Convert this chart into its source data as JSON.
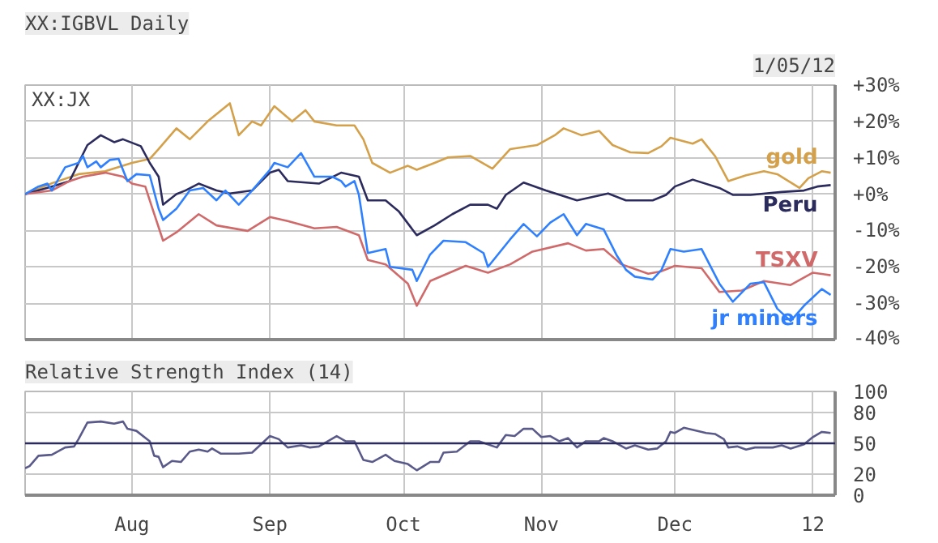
{
  "chart_data": [
    {
      "type": "line",
      "title": "XX:IGBVL Daily",
      "annotations": [
        "XX:JX",
        "1/05/12"
      ],
      "xlim": [
        "2011-07-08",
        "2012-01-06"
      ],
      "xticks": [
        {
          "value": "2011-08-01",
          "label": null
        },
        {
          "value": "2011-09-01",
          "label": null
        },
        {
          "value": "2011-10-01",
          "label": null
        },
        {
          "value": "2011-11-01",
          "label": null
        },
        {
          "value": "2011-12-01",
          "label": null
        },
        {
          "value": "2012-01-01",
          "label": null
        }
      ],
      "ylim": [
        -40,
        30
      ],
      "yticks": [
        {
          "value": 30,
          "label": "+30%"
        },
        {
          "value": 20,
          "label": "+20%"
        },
        {
          "value": 10,
          "label": "+10%"
        },
        {
          "value": 0,
          "label": "+0%"
        },
        {
          "value": -10,
          "label": "-10%"
        },
        {
          "value": -20,
          "label": "-20%"
        },
        {
          "value": -30,
          "label": "-30%"
        },
        {
          "value": -40,
          "label": "-40%"
        }
      ],
      "tick_labels": "y",
      "grid": true,
      "series": [
        {
          "name": "gold",
          "color": "#d4a04a",
          "x": [
            "2011-07-08",
            "2011-07-14",
            "2011-07-20",
            "2011-07-26",
            "2011-08-01",
            "2011-08-05",
            "2011-08-07",
            "2011-08-11",
            "2011-08-14",
            "2011-08-18",
            "2011-08-23",
            "2011-08-25",
            "2011-08-28",
            "2011-08-30",
            "2011-09-02",
            "2011-09-06",
            "2011-09-09",
            "2011-09-11",
            "2011-09-16",
            "2011-09-20",
            "2011-09-22",
            "2011-09-24",
            "2011-09-28",
            "2011-10-02",
            "2011-10-04",
            "2011-10-08",
            "2011-10-11",
            "2011-10-16",
            "2011-10-21",
            "2011-10-25",
            "2011-10-31",
            "2011-11-04",
            "2011-11-06",
            "2011-11-10",
            "2011-11-14",
            "2011-11-17",
            "2011-11-21",
            "2011-11-25",
            "2011-11-28",
            "2011-11-30",
            "2011-12-05",
            "2011-12-07",
            "2011-12-10",
            "2011-12-13",
            "2011-12-17",
            "2011-12-21",
            "2011-12-24",
            "2011-12-29",
            "2011-12-31",
            "2012-01-03",
            "2012-01-05"
          ],
          "values": [
            0,
            3,
            5.5,
            6.3,
            8.6,
            9.7,
            12.4,
            18.1,
            15.1,
            20,
            25,
            16.2,
            20,
            18.9,
            24.2,
            20,
            23.1,
            20,
            18.9,
            18.9,
            15.1,
            8.6,
            5.9,
            7.8,
            6.7,
            8.6,
            10.1,
            10.5,
            7,
            12.4,
            13.5,
            16.2,
            18.1,
            16.2,
            17.4,
            13.5,
            11.5,
            11.3,
            13.2,
            15.5,
            13.9,
            15.1,
            10.5,
            3.6,
            5.2,
            6.3,
            5.5,
            1.7,
            4.4,
            6.3,
            5.9
          ]
        },
        {
          "name": "Peru",
          "color": "#2b2b5e",
          "x": [
            "2011-07-08",
            "2011-07-14",
            "2011-07-18",
            "2011-07-22",
            "2011-07-25",
            "2011-07-28",
            "2011-07-30",
            "2011-08-03",
            "2011-08-05",
            "2011-08-07",
            "2011-08-08",
            "2011-08-11",
            "2011-08-13",
            "2011-08-16",
            "2011-08-20",
            "2011-08-23",
            "2011-08-28",
            "2011-09-01",
            "2011-09-03",
            "2011-09-05",
            "2011-09-12",
            "2011-09-17",
            "2011-09-21",
            "2011-09-23",
            "2011-09-27",
            "2011-09-30",
            "2011-10-04",
            "2011-10-08",
            "2011-10-12",
            "2011-10-16",
            "2011-10-20",
            "2011-10-22",
            "2011-10-24",
            "2011-10-28",
            "2011-11-02",
            "2011-11-09",
            "2011-11-16",
            "2011-11-20",
            "2011-11-26",
            "2011-11-29",
            "2011-12-01",
            "2011-12-05",
            "2011-12-11",
            "2011-12-14",
            "2011-12-18",
            "2011-12-25",
            "2011-12-30",
            "2012-01-02",
            "2012-01-05"
          ],
          "values": [
            0,
            2.1,
            3.6,
            13.5,
            16.2,
            14.3,
            15.1,
            13.2,
            8.6,
            4.8,
            -2.9,
            0,
            1,
            2.9,
            1,
            0.2,
            1,
            5.9,
            6.7,
            3.6,
            2.9,
            5.9,
            4.8,
            -1.7,
            -1.7,
            -4.8,
            -11.3,
            -8.6,
            -5.5,
            -2.9,
            -2.9,
            -4,
            -0.2,
            3.2,
            1,
            -1.7,
            0.2,
            -1.7,
            -1.7,
            -0.2,
            2.1,
            4,
            1.7,
            -0.2,
            -0.2,
            0.6,
            1,
            2.1,
            2.5
          ]
        },
        {
          "name": "TSXV",
          "color": "#d06a6a",
          "x": [
            "2011-07-08",
            "2011-07-14",
            "2011-07-18",
            "2011-07-21",
            "2011-07-26",
            "2011-07-30",
            "2011-08-01",
            "2011-08-04",
            "2011-08-05",
            "2011-08-08",
            "2011-08-11",
            "2011-08-16",
            "2011-08-20",
            "2011-08-27",
            "2011-09-01",
            "2011-09-05",
            "2011-09-11",
            "2011-09-16",
            "2011-09-21",
            "2011-09-23",
            "2011-09-27",
            "2011-10-02",
            "2011-10-04",
            "2011-10-07",
            "2011-10-15",
            "2011-10-20",
            "2011-10-25",
            "2011-10-30",
            "2011-11-07",
            "2011-11-11",
            "2011-11-15",
            "2011-11-19",
            "2011-11-25",
            "2011-11-28",
            "2011-12-01",
            "2011-12-07",
            "2011-12-11",
            "2011-12-16",
            "2011-12-21",
            "2011-12-27",
            "2012-01-01",
            "2012-01-05"
          ],
          "values": [
            0,
            1,
            3.6,
            4.8,
            5.9,
            4.8,
            2.9,
            2.1,
            -1.7,
            -12.8,
            -10.5,
            -5.5,
            -8.6,
            -10.1,
            -6.3,
            -7.4,
            -9.4,
            -9,
            -11.3,
            -18.1,
            -19.3,
            -24.6,
            -30.7,
            -23.9,
            -19.7,
            -21.6,
            -19.3,
            -15.8,
            -13.5,
            -15.5,
            -15.1,
            -19.3,
            -21.9,
            -21.2,
            -19.7,
            -20.4,
            -26.9,
            -26.5,
            -23.9,
            -25,
            -21.6,
            -22.3
          ]
        },
        {
          "name": "jr miners",
          "color": "#2f80ff",
          "x": [
            "2011-07-08",
            "2011-07-11",
            "2011-07-13",
            "2011-07-14",
            "2011-07-17",
            "2011-07-20",
            "2011-07-21",
            "2011-07-22",
            "2011-07-24",
            "2011-07-25",
            "2011-07-27",
            "2011-07-29",
            "2011-07-31",
            "2011-08-02",
            "2011-08-05",
            "2011-08-07",
            "2011-08-08",
            "2011-08-11",
            "2011-08-14",
            "2011-08-17",
            "2011-08-20",
            "2011-08-22",
            "2011-08-25",
            "2011-08-28",
            "2011-09-01",
            "2011-09-02",
            "2011-09-05",
            "2011-09-08",
            "2011-09-11",
            "2011-09-15",
            "2011-09-17",
            "2011-09-18",
            "2011-09-20",
            "2011-09-21",
            "2011-09-23",
            "2011-09-27",
            "2011-09-28",
            "2011-10-03",
            "2011-10-04",
            "2011-10-07",
            "2011-10-10",
            "2011-10-15",
            "2011-10-19",
            "2011-10-20",
            "2011-10-25",
            "2011-10-28",
            "2011-10-31",
            "2011-11-03",
            "2011-11-06",
            "2011-11-09",
            "2011-11-11",
            "2011-11-15",
            "2011-11-18",
            "2011-11-20",
            "2011-11-22",
            "2011-11-26",
            "2011-11-28",
            "2011-11-30",
            "2011-12-03",
            "2011-12-07",
            "2011-12-11",
            "2011-12-14",
            "2011-12-18",
            "2011-12-21",
            "2011-12-24",
            "2011-12-27",
            "2011-12-30",
            "2012-01-03",
            "2012-01-05"
          ],
          "values": [
            0,
            2.1,
            2.9,
            1,
            7.4,
            8.6,
            10.5,
            7.4,
            9,
            7.4,
            9.4,
            9.7,
            3.6,
            5.5,
            5.2,
            -4,
            -7.1,
            -4,
            1,
            1.7,
            -1.7,
            1,
            -2.9,
            1,
            6.7,
            8.6,
            7.4,
            11.3,
            4.8,
            4.8,
            3.6,
            2.1,
            3.6,
            -0.2,
            -16.2,
            -15.1,
            -20,
            -20.8,
            -23.9,
            -16.6,
            -12.8,
            -13.2,
            -16.2,
            -20,
            -12.4,
            -8.2,
            -11.6,
            -7.8,
            -5.5,
            -11.3,
            -8.2,
            -9.7,
            -17,
            -20.8,
            -22.7,
            -23.5,
            -20.8,
            -15.1,
            -15.8,
            -15.1,
            -24.6,
            -29.6,
            -24.6,
            -24.2,
            -31.5,
            -34.9,
            -30.7,
            -26.1,
            -27.7
          ]
        }
      ]
    },
    {
      "type": "line",
      "title": "Relative Strength Index (14)",
      "xlim": [
        "2011-07-08",
        "2012-01-06"
      ],
      "xticks": [
        {
          "value": "2011-08-01",
          "label": "Aug"
        },
        {
          "value": "2011-09-01",
          "label": "Sep"
        },
        {
          "value": "2011-10-01",
          "label": "Oct"
        },
        {
          "value": "2011-11-01",
          "label": "Nov"
        },
        {
          "value": "2011-12-01",
          "label": "Dec"
        },
        {
          "value": "2012-01-01",
          "label": "12"
        }
      ],
      "ylim": [
        0,
        100
      ],
      "yticks": [
        0,
        20,
        50,
        80,
        100
      ],
      "grid": true,
      "ref_lines": [
        {
          "axis": "y",
          "value": 50,
          "color": "#2b2b5e"
        }
      ],
      "series": [
        {
          "color": "#5a5a8a",
          "x": [
            "2011-07-08",
            "2011-07-09",
            "2011-07-11",
            "2011-07-14",
            "2011-07-17",
            "2011-07-19",
            "2011-07-20",
            "2011-07-22",
            "2011-07-25",
            "2011-07-28",
            "2011-07-30",
            "2011-07-31",
            "2011-08-02",
            "2011-08-05",
            "2011-08-06",
            "2011-08-07",
            "2011-08-08",
            "2011-08-10",
            "2011-08-12",
            "2011-08-14",
            "2011-08-16",
            "2011-08-18",
            "2011-08-19",
            "2011-08-21",
            "2011-08-25",
            "2011-08-28",
            "2011-09-01",
            "2011-09-03",
            "2011-09-05",
            "2011-09-08",
            "2011-09-10",
            "2011-09-12",
            "2011-09-16",
            "2011-09-18",
            "2011-09-20",
            "2011-09-22",
            "2011-09-24",
            "2011-09-27",
            "2011-09-29",
            "2011-10-02",
            "2011-10-04",
            "2011-10-07",
            "2011-10-09",
            "2011-10-10",
            "2011-10-13",
            "2011-10-16",
            "2011-10-18",
            "2011-10-22",
            "2011-10-24",
            "2011-10-26",
            "2011-10-28",
            "2011-10-30",
            "2011-11-01",
            "2011-11-03",
            "2011-11-05",
            "2011-11-07",
            "2011-11-09",
            "2011-11-11",
            "2011-11-14",
            "2011-11-15",
            "2011-11-17",
            "2011-11-20",
            "2011-11-22",
            "2011-11-25",
            "2011-11-27",
            "2011-11-29",
            "2011-11-30",
            "2011-12-01",
            "2011-12-03",
            "2011-12-08",
            "2011-12-10",
            "2011-12-12",
            "2011-12-13",
            "2011-12-15",
            "2011-12-17",
            "2011-12-19",
            "2011-12-23",
            "2011-12-25",
            "2011-12-27",
            "2011-12-30",
            "2012-01-01",
            "2012-01-03",
            "2012-01-05"
          ],
          "values": [
            26,
            28,
            38,
            39,
            46,
            47,
            54,
            70,
            71,
            69,
            71,
            64,
            62,
            52,
            38,
            37,
            27,
            33,
            32,
            42,
            44,
            42,
            45,
            40,
            40,
            41,
            57,
            54,
            46,
            48,
            46,
            47,
            57,
            52,
            52,
            34,
            32,
            39,
            33,
            30,
            24,
            32,
            32,
            41,
            42,
            52,
            52,
            46,
            58,
            57,
            64,
            64,
            56,
            57,
            52,
            55,
            46,
            52,
            52,
            55,
            52,
            45,
            48,
            44,
            45,
            52,
            61,
            60,
            65,
            60,
            59,
            54,
            46,
            47,
            44,
            46,
            46,
            48,
            45,
            49,
            56,
            61,
            60
          ]
        }
      ]
    }
  ]
}
